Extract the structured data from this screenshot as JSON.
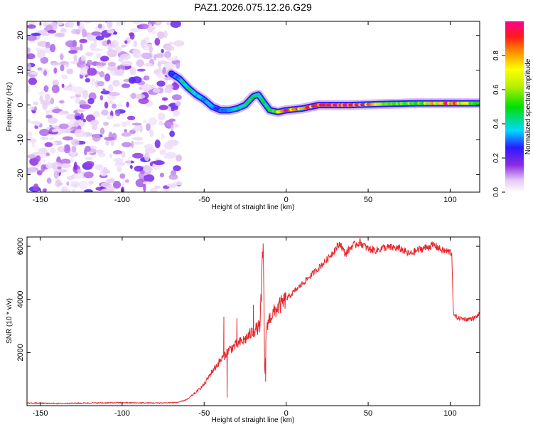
{
  "title": "PAZ1.2026.075.12.26.G29",
  "chart_data": [
    {
      "type": "heatmap",
      "name": "spectrogram",
      "title": "PAZ1.2026.075.12.26.G29",
      "xlabel": "Height of straight line (km)",
      "ylabel": "Frequency (Hz)",
      "xlim": [
        -158,
        118
      ],
      "ylim": [
        -25,
        24
      ],
      "x_ticks": [
        -150,
        -100,
        -50,
        0,
        50,
        100
      ],
      "y_ticks": [
        -20,
        -10,
        0,
        10,
        20
      ],
      "noise_region_x": [
        -158,
        -65
      ],
      "ridge": {
        "x": [
          -70,
          -65,
          -60,
          -55,
          -50,
          -45,
          -40,
          -35,
          -30,
          -25,
          -20,
          -17,
          -14,
          -10,
          -5,
          0,
          10,
          20,
          40,
          60,
          80,
          100,
          118
        ],
        "frequency": [
          9,
          7.5,
          5,
          3,
          1.5,
          -0.5,
          -1.5,
          -1.5,
          -1,
          0,
          2.5,
          3,
          1,
          -1.5,
          -2,
          -1.5,
          -1,
          0,
          0,
          0.3,
          0.5,
          0.5,
          0.5
        ],
        "amplitude": [
          0.25,
          0.35,
          0.45,
          0.4,
          0.35,
          0.3,
          0.3,
          0.35,
          0.4,
          0.45,
          0.5,
          0.45,
          0.4,
          0.45,
          0.6,
          0.9,
          0.7,
          0.95,
          0.95,
          0.6,
          0.55,
          0.85,
          0.45
        ]
      },
      "colorbar": {
        "label": "Normalized spectral amplitude",
        "range": [
          0,
          1
        ],
        "ticks": [
          "0.0",
          "0.2",
          "0.4",
          "0.6",
          "0.8"
        ]
      }
    },
    {
      "type": "line",
      "name": "snr",
      "xlabel": "Height of straight line (km)",
      "ylabel": "SNR (10 * v/v)",
      "xlim": [
        -158,
        118
      ],
      "ylim": [
        0,
        6350
      ],
      "x_ticks": [
        -150,
        -100,
        -50,
        0,
        50,
        100
      ],
      "y_ticks": [
        2000,
        4000,
        6000
      ],
      "color": "#e8262b",
      "series": [
        {
          "name": "SNR",
          "x": [
            -158,
            -140,
            -120,
            -100,
            -80,
            -70,
            -65,
            -60,
            -55,
            -50,
            -45,
            -40,
            -35,
            -30,
            -25,
            -20,
            -16,
            -14,
            -13,
            -12,
            -10,
            -5,
            0,
            5,
            10,
            15,
            20,
            25,
            30,
            33,
            36,
            40,
            45,
            50,
            55,
            60,
            65,
            70,
            75,
            80,
            85,
            90,
            95,
            100,
            101,
            102,
            105,
            110,
            115,
            118
          ],
          "y": [
            100,
            80,
            100,
            110,
            100,
            110,
            130,
            250,
            500,
            800,
            1300,
            1700,
            2100,
            2300,
            2500,
            2800,
            3000,
            6100,
            1000,
            3000,
            3300,
            3700,
            4000,
            4300,
            4600,
            4900,
            5200,
            5500,
            5900,
            6100,
            5700,
            6000,
            6150,
            5900,
            5850,
            5950,
            5950,
            5900,
            5700,
            5850,
            5950,
            6050,
            5850,
            5780,
            5750,
            3400,
            3300,
            3250,
            3300,
            3450
          ],
          "spikes": [
            {
              "x": -38,
              "y": 3350
            },
            {
              "x": -36,
              "y": 300
            },
            {
              "x": -30,
              "y": 3300
            },
            {
              "x": -20,
              "y": 3800
            },
            {
              "x": -15,
              "y": 3900
            },
            {
              "x": -14,
              "y": 6100
            },
            {
              "x": -12.5,
              "y": 900
            }
          ]
        }
      ]
    }
  ]
}
